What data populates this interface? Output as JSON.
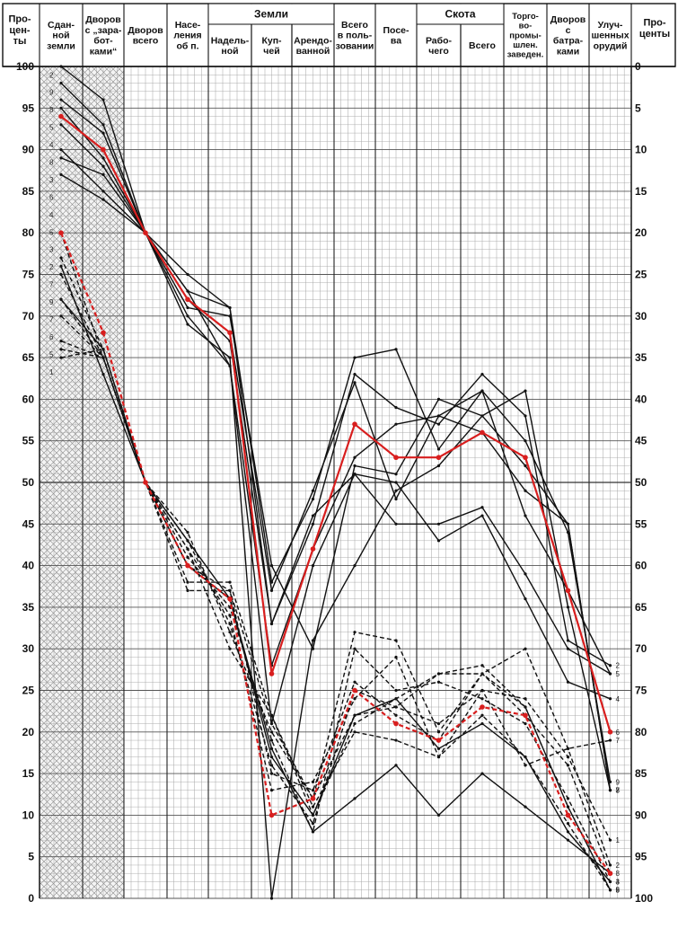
{
  "chart_data": {
    "type": "line",
    "title": "",
    "left_axis_label": "Про-\nцен-\nты",
    "right_axis_label": "Про-\nценты",
    "ylim_left": [
      0,
      100
    ],
    "ylim_right": [
      100,
      0
    ],
    "left_ticks": [
      "100",
      "95",
      "90",
      "85",
      "80",
      "75",
      "70",
      "65",
      "60",
      "55",
      "50",
      "45",
      "40",
      "35",
      "30",
      "25",
      "20",
      "15",
      "10",
      "5",
      "0"
    ],
    "right_ticks": [
      "0",
      "5",
      "10",
      "15",
      "20",
      "25",
      "30",
      "35",
      "40",
      "45",
      "50",
      "55",
      "60",
      "65",
      "70",
      "75",
      "80",
      "85",
      "90",
      "95",
      "100"
    ],
    "columns": [
      {
        "label": "Сдан-\nной\nземли",
        "group": ""
      },
      {
        "label": "Дворов\nс „зара-\nбот-\nками“",
        "group": ""
      },
      {
        "label": "Дворов\nвсего",
        "group": ""
      },
      {
        "label": "Насе-\nления\nоб п.",
        "group": ""
      },
      {
        "label": "Надель-\nной",
        "group": "Земли"
      },
      {
        "label": "Куп-\nчей",
        "group": "Земли"
      },
      {
        "label": "Арендо-\nванной",
        "group": "Земли"
      },
      {
        "label": "Всего\nв поль-\nзовании",
        "group": ""
      },
      {
        "label": "Посе-\nва",
        "group": ""
      },
      {
        "label": "Рабо-\nчего",
        "group": "Скота"
      },
      {
        "label": "Всего",
        "group": "Скота"
      },
      {
        "label": "Торго-\nво-\nпромы-\nшлен.\nзаведен.",
        "group": ""
      },
      {
        "label": "Дворов\nс\nбатра-\nками",
        "group": ""
      },
      {
        "label": "Улуч-\nшенных\nорудий",
        "group": ""
      }
    ],
    "groups": [
      "Земли",
      "Скота"
    ],
    "series": [
      {
        "group": "upper",
        "style": "solid",
        "color": "#111111",
        "values": [
          100,
          96,
          80,
          75,
          71,
          38,
          48,
          65,
          66,
          54,
          61,
          46,
          37,
          27
        ],
        "end_label": "5"
      },
      {
        "group": "upper",
        "style": "solid",
        "color": "#111111",
        "values": [
          98,
          93,
          80,
          73,
          71,
          33,
          45,
          63,
          59,
          57,
          63,
          58,
          31,
          28
        ],
        "end_label": "2"
      },
      {
        "group": "upper",
        "style": "solid",
        "color": "#111111",
        "values": [
          96,
          92,
          80,
          72,
          68,
          37,
          49,
          62,
          48,
          58,
          61,
          55,
          44,
          14
        ],
        "end_label": "9"
      },
      {
        "group": "upper",
        "style": "solid",
        "color": "#111111",
        "values": [
          95,
          89,
          80,
          71,
          70,
          40,
          30,
          52,
          51,
          60,
          58,
          52,
          45,
          13
        ],
        "end_label": "8"
      },
      {
        "group": "upper",
        "style": "solid",
        "color": "#111111",
        "values": [
          93,
          88,
          80,
          72,
          67,
          33,
          46,
          51,
          50,
          43,
          46,
          36,
          26,
          24
        ],
        "end_label": "4"
      },
      {
        "group": "upper",
        "style": "solid",
        "color": "#111111",
        "values": [
          90,
          85,
          80,
          70,
          64,
          21,
          40,
          51,
          45,
          45,
          47,
          39,
          30,
          27
        ],
        "end_label": ""
      },
      {
        "group": "upper",
        "style": "solid",
        "color": "#111111",
        "values": [
          89,
          87,
          80,
          69,
          65,
          0,
          31,
          40,
          49,
          52,
          58,
          61,
          35,
          13
        ],
        "end_label": "3"
      },
      {
        "group": "upper",
        "style": "solid",
        "color": "#111111",
        "values": [
          87,
          84,
          80,
          73,
          64,
          28,
          42,
          53,
          57,
          58,
          56,
          49,
          45,
          13
        ],
        "end_label": "7"
      },
      {
        "group": "upper",
        "style": "solid",
        "color": "#d81e1e",
        "values": [
          94,
          90,
          80,
          72,
          68,
          27,
          42,
          57,
          53,
          53,
          56,
          53,
          37,
          20
        ],
        "end_label": "6",
        "highlight": true
      },
      {
        "group": "lower",
        "style": "dashed",
        "color": "#111111",
        "values": [
          80,
          65,
          50,
          38,
          38,
          22,
          11,
          20,
          19,
          17,
          25,
          24,
          17,
          7
        ],
        "end_label": "1"
      },
      {
        "group": "lower",
        "style": "dashed",
        "color": "#111111",
        "values": [
          77,
          66,
          50,
          40,
          37,
          21,
          12,
          32,
          31,
          20,
          27,
          30,
          18,
          4
        ],
        "end_label": "2"
      },
      {
        "group": "lower",
        "style": "dashed",
        "color": "#111111",
        "values": [
          75,
          65,
          50,
          41,
          35,
          19,
          8,
          30,
          25,
          26,
          24,
          21,
          12,
          2
        ],
        "end_label": "4"
      },
      {
        "group": "lower",
        "style": "dashed",
        "color": "#111111",
        "values": [
          72,
          65,
          50,
          42,
          34,
          13,
          14,
          24,
          29,
          17,
          22,
          17,
          9,
          1
        ],
        "end_label": "9"
      },
      {
        "group": "lower",
        "style": "dashed",
        "color": "#111111",
        "values": [
          70,
          65,
          50,
          37,
          37,
          15,
          13,
          26,
          22,
          19,
          27,
          23,
          11,
          1
        ],
        "end_label": "5"
      },
      {
        "group": "lower",
        "style": "dashed",
        "color": "#111111",
        "values": [
          65,
          66,
          50,
          42,
          30,
          22,
          10,
          21,
          24,
          27,
          28,
          23,
          11,
          1
        ],
        "end_label": "6"
      },
      {
        "group": "lower",
        "style": "dashed",
        "color": "#111111",
        "values": [
          67,
          65,
          50,
          44,
          32,
          20,
          12,
          22,
          23,
          27,
          27,
          22,
          16,
          3
        ],
        "end_label": "8"
      },
      {
        "group": "lower",
        "style": "dashed",
        "color": "#111111",
        "values": [
          66,
          65,
          50,
          43,
          33,
          16,
          9,
          25,
          23,
          21,
          25,
          16,
          18,
          19
        ],
        "end_label": "7"
      },
      {
        "group": "lower",
        "style": "solid",
        "color": "#111111",
        "values": [
          72,
          66,
          50,
          43,
          36,
          17,
          10,
          22,
          24,
          18,
          21,
          17,
          8,
          2
        ],
        "end_label": "3"
      },
      {
        "group": "lower",
        "style": "solid",
        "color": "#111111",
        "values": [
          76,
          63,
          50,
          40,
          36,
          18,
          8,
          12,
          16,
          10,
          15,
          11,
          7,
          3
        ],
        "end_label": ""
      },
      {
        "group": "lower",
        "style": "dashed",
        "color": "#d81e1e",
        "values": [
          80,
          68,
          50,
          40,
          36,
          10,
          12,
          25,
          21,
          19,
          23,
          22,
          10,
          3
        ],
        "end_label": "",
        "highlight": true
      }
    ],
    "left_series_labels": [
      "2",
      "9",
      "8",
      "5",
      "4",
      "8",
      "3",
      "6",
      "4",
      "5",
      "3",
      "2",
      "7",
      "9",
      "7",
      "6",
      "5",
      "1"
    ],
    "hatched_columns": [
      0,
      1
    ],
    "grid": true,
    "minor_grid_step": 1,
    "major_grid_step": 5
  }
}
